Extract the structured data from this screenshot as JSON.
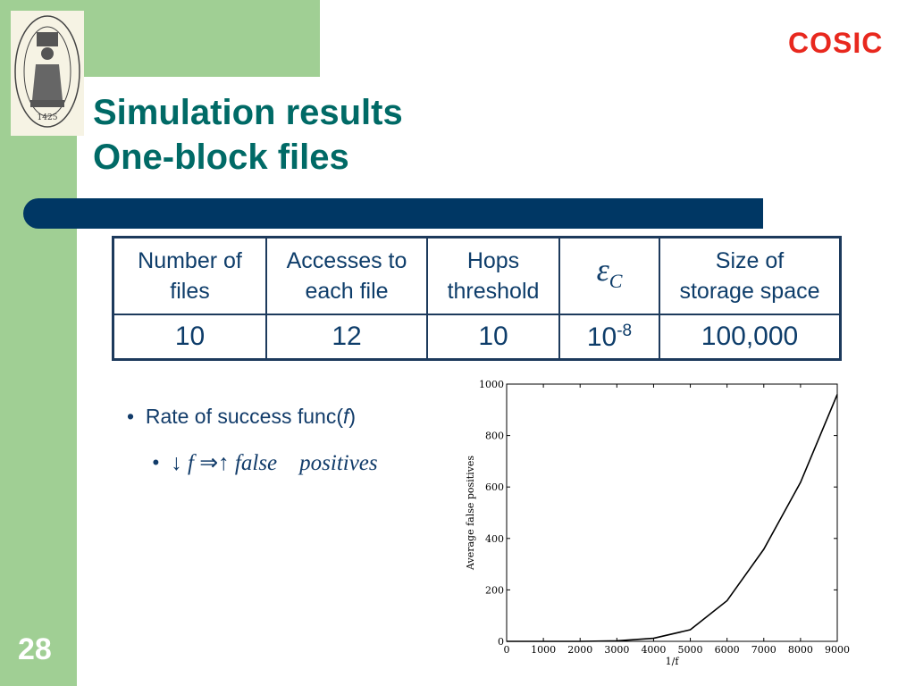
{
  "title": {
    "line1": "Simulation results",
    "line2": "One-block files"
  },
  "logo": {
    "text": "COSIC"
  },
  "seal": {
    "year": "1425"
  },
  "table": {
    "headers": [
      "Number of files",
      "Accesses to each file",
      "Hops threshold",
      "ε C",
      "Size of storage space"
    ],
    "values": [
      "10",
      "12",
      "10",
      "10",
      "100,000"
    ],
    "epsilon_exponent": "-8"
  },
  "bullets": {
    "first": "Rate of success func(f)",
    "second_math": "↓ f ⇒↑ false positives"
  },
  "page_number": "28",
  "colors": {
    "green": "#a0cf94",
    "title": "#006a66",
    "bar": "#003764",
    "logo": "#e8281e"
  },
  "chart_data": {
    "type": "line",
    "xlabel": "1/f",
    "ylabel": "Average false positives",
    "xlim": [
      0,
      9000
    ],
    "ylim": [
      0,
      1000
    ],
    "xticks": [
      0,
      1000,
      2000,
      3000,
      4000,
      5000,
      6000,
      7000,
      8000,
      9000
    ],
    "yticks": [
      0,
      200,
      400,
      600,
      800,
      1000
    ],
    "grid": false,
    "series": [
      {
        "x": [
          0,
          1000,
          2000,
          3000,
          4000,
          5000,
          6000,
          7000,
          8000,
          9000
        ],
        "y": [
          0,
          0,
          0,
          2,
          12,
          45,
          158,
          358,
          618,
          960
        ]
      }
    ]
  }
}
